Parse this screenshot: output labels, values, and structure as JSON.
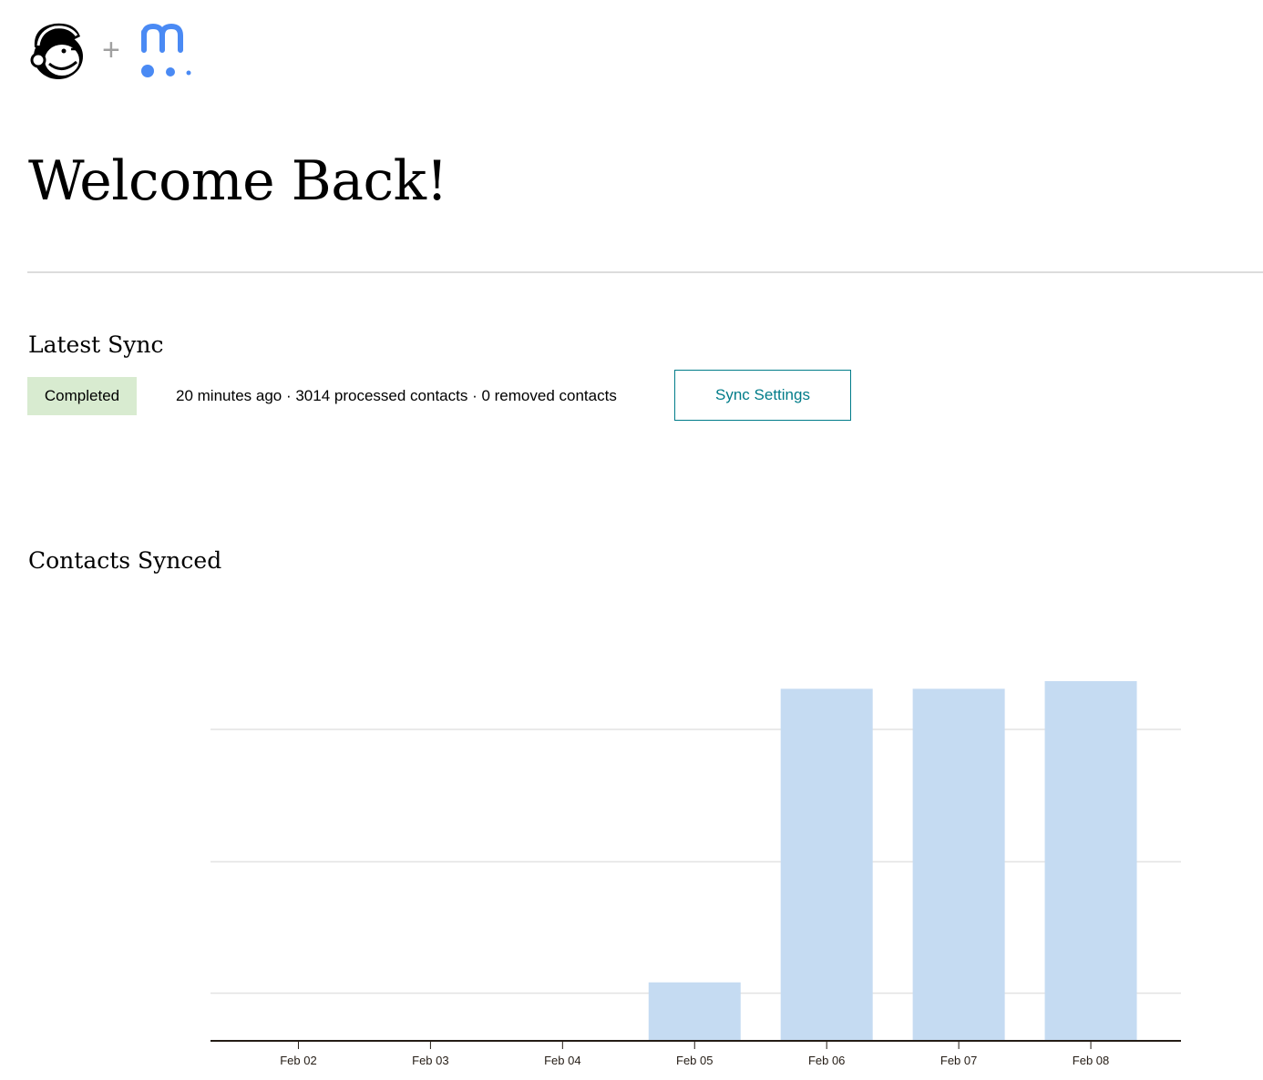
{
  "header": {
    "plus": "+",
    "logos": [
      "mailchimp-freddie-logo",
      "meetup-m-logo"
    ]
  },
  "page_title": "Welcome Back!",
  "latest_sync": {
    "heading": "Latest Sync",
    "status": "Completed",
    "status_color": "#d8ebd0",
    "summary": "20 minutes ago · 3014 processed contacts · 0 removed contacts",
    "settings_button": "Sync Settings",
    "accent": "#007c89"
  },
  "contacts_synced": {
    "heading": "Contacts Synced"
  },
  "chart_data": {
    "type": "bar",
    "title": "",
    "xlabel": "",
    "ylabel": "",
    "categories": [
      "Feb 02",
      "Feb 03",
      "Feb 04",
      "Feb 05",
      "Feb 06",
      "Feb 07",
      "Feb 08"
    ],
    "values": [
      0,
      0,
      0,
      490,
      2950,
      2950,
      3014
    ],
    "gridlines": [
      400,
      1500,
      2610
    ],
    "ylim": [
      0,
      3400
    ],
    "grid": true,
    "y_tick_labels_shown": false,
    "bar_color": "#c5dbf2"
  }
}
